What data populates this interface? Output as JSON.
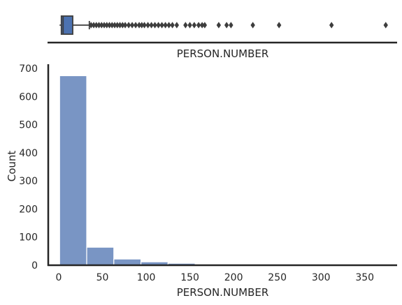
{
  "chart_data": [
    {
      "type": "box",
      "xlabel": "PERSON.NUMBER",
      "xlim": [
        -12,
        387
      ],
      "box": {
        "q1": 3,
        "median": 5,
        "q3": 16,
        "whisker_low": 1,
        "whisker_high": 35
      },
      "outliers": [
        37,
        40,
        43,
        46,
        49,
        52,
        55,
        58,
        61,
        64,
        67,
        70,
        73,
        76,
        80,
        84,
        88,
        92,
        95,
        98,
        102,
        106,
        110,
        114,
        118,
        122,
        126,
        130,
        135,
        145,
        150,
        155,
        160,
        164,
        167,
        183,
        192,
        197,
        222,
        252,
        312,
        374
      ],
      "colors": {
        "box_fill": "#4c72b0",
        "line": "#3d3d3d"
      }
    },
    {
      "type": "bar",
      "chart_kind": "histogram",
      "bins": [
        {
          "x0": 1,
          "x1": 32,
          "count": 674
        },
        {
          "x0": 32,
          "x1": 63,
          "count": 64
        },
        {
          "x0": 63,
          "x1": 94,
          "count": 22
        },
        {
          "x0": 94,
          "x1": 125,
          "count": 12
        },
        {
          "x0": 125,
          "x1": 156,
          "count": 7
        },
        {
          "x0": 156,
          "x1": 187,
          "count": 3
        },
        {
          "x0": 187,
          "x1": 218,
          "count": 2
        },
        {
          "x0": 218,
          "x1": 249,
          "count": 1
        },
        {
          "x0": 249,
          "x1": 280,
          "count": 2
        },
        {
          "x0": 280,
          "x1": 311,
          "count": 0
        },
        {
          "x0": 311,
          "x1": 342,
          "count": 1
        },
        {
          "x0": 342,
          "x1": 374,
          "count": 1
        }
      ],
      "xlabel": "PERSON.NUMBER",
      "ylabel": "Count",
      "xlim": [
        -12,
        387
      ],
      "ylim": [
        0,
        705
      ],
      "xticks": [
        0,
        50,
        100,
        150,
        200,
        250,
        300,
        350
      ],
      "yticks": [
        0,
        100,
        200,
        300,
        400,
        500,
        600,
        700
      ],
      "grid": false,
      "colors": {
        "bar_fill": "#4c72b0",
        "bar_edge": "#ffffff",
        "axis": "#262626"
      }
    }
  ]
}
